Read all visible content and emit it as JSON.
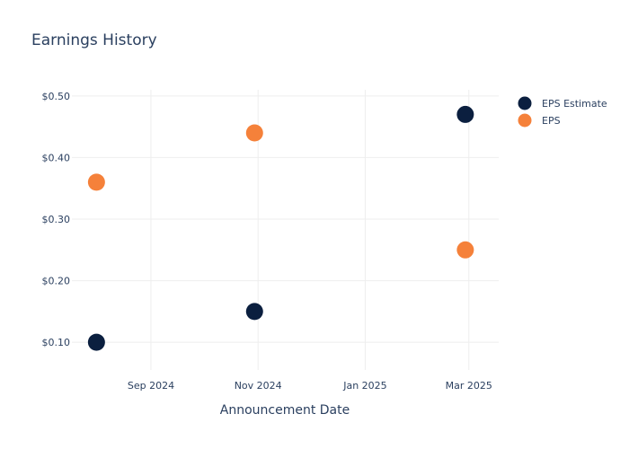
{
  "chart_data": {
    "type": "scatter",
    "title": "Earnings History",
    "xlabel": "Announcement Date",
    "ylabel": "",
    "x_ticks": [
      {
        "label": "Sep 2024",
        "date": "2024-09-01"
      },
      {
        "label": "Nov 2024",
        "date": "2024-11-01"
      },
      {
        "label": "Jan 2025",
        "date": "2025-01-01"
      },
      {
        "label": "Mar 2025",
        "date": "2025-03-01"
      }
    ],
    "y_ticks": [
      {
        "label": "$0.10",
        "value": 0.1
      },
      {
        "label": "$0.20",
        "value": 0.2
      },
      {
        "label": "$0.30",
        "value": 0.3
      },
      {
        "label": "$0.40",
        "value": 0.4
      },
      {
        "label": "$0.50",
        "value": 0.5
      }
    ],
    "xlim": [
      "2024-07-18",
      "2025-03-18"
    ],
    "ylim": [
      0.055,
      0.51
    ],
    "grid": true,
    "legend_position": "top-right",
    "series": [
      {
        "name": "EPS Estimate",
        "color": "#0b1f3f",
        "points": [
          {
            "x": "2024-08-01",
            "y": 0.1
          },
          {
            "x": "2024-10-30",
            "y": 0.15
          },
          {
            "x": "2025-02-27",
            "y": 0.47
          }
        ]
      },
      {
        "name": "EPS",
        "color": "#f5813a",
        "points": [
          {
            "x": "2024-08-01",
            "y": 0.36
          },
          {
            "x": "2024-10-30",
            "y": 0.44
          },
          {
            "x": "2025-02-27",
            "y": 0.25
          }
        ]
      }
    ]
  }
}
